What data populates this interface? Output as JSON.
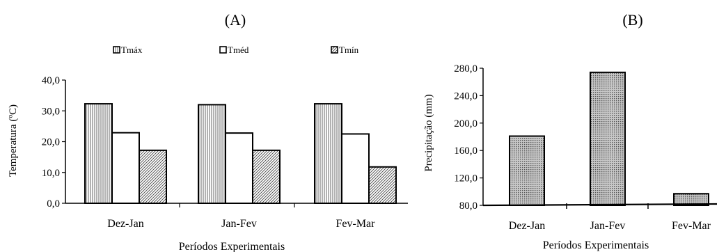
{
  "panels": {
    "a_label": "(A)",
    "b_label": "(B)"
  },
  "chart_data": [
    {
      "type": "bar",
      "panel": "(A)",
      "categories": [
        "Dez-Jan",
        "Jan-Fev",
        "Fev-Mar"
      ],
      "series": [
        {
          "name": "Tmáx",
          "values": [
            32.3,
            32.0,
            32.3
          ],
          "pattern": "vertical-lines"
        },
        {
          "name": "Tméd",
          "values": [
            22.9,
            22.8,
            22.5
          ],
          "pattern": "solid-white"
        },
        {
          "name": "Tmín",
          "values": [
            17.2,
            17.2,
            11.8
          ],
          "pattern": "diagonal-hatch"
        }
      ],
      "xlabel": "Períodos Experimentais",
      "ylabel": "Temperatura (ºC)",
      "ylim": [
        0,
        40
      ],
      "yticks": [
        "0,0",
        "10,0",
        "20,0",
        "30,0",
        "40,0"
      ],
      "grid": false,
      "legend": "top"
    },
    {
      "type": "bar",
      "panel": "(B)",
      "categories": [
        "Dez-Jan",
        "Jan-Fev",
        "Fev-Mar"
      ],
      "series": [
        {
          "name": "",
          "values": [
            181,
            274,
            97
          ],
          "pattern": "grid-dotted"
        }
      ],
      "xlabel": "Períodos Experimentais",
      "ylabel": "Precipitação (mm)",
      "ylim": [
        80,
        280
      ],
      "yticks": [
        "80,0",
        "120,0",
        "160,0",
        "200,0",
        "240,0",
        "280,0"
      ],
      "grid": false
    }
  ]
}
